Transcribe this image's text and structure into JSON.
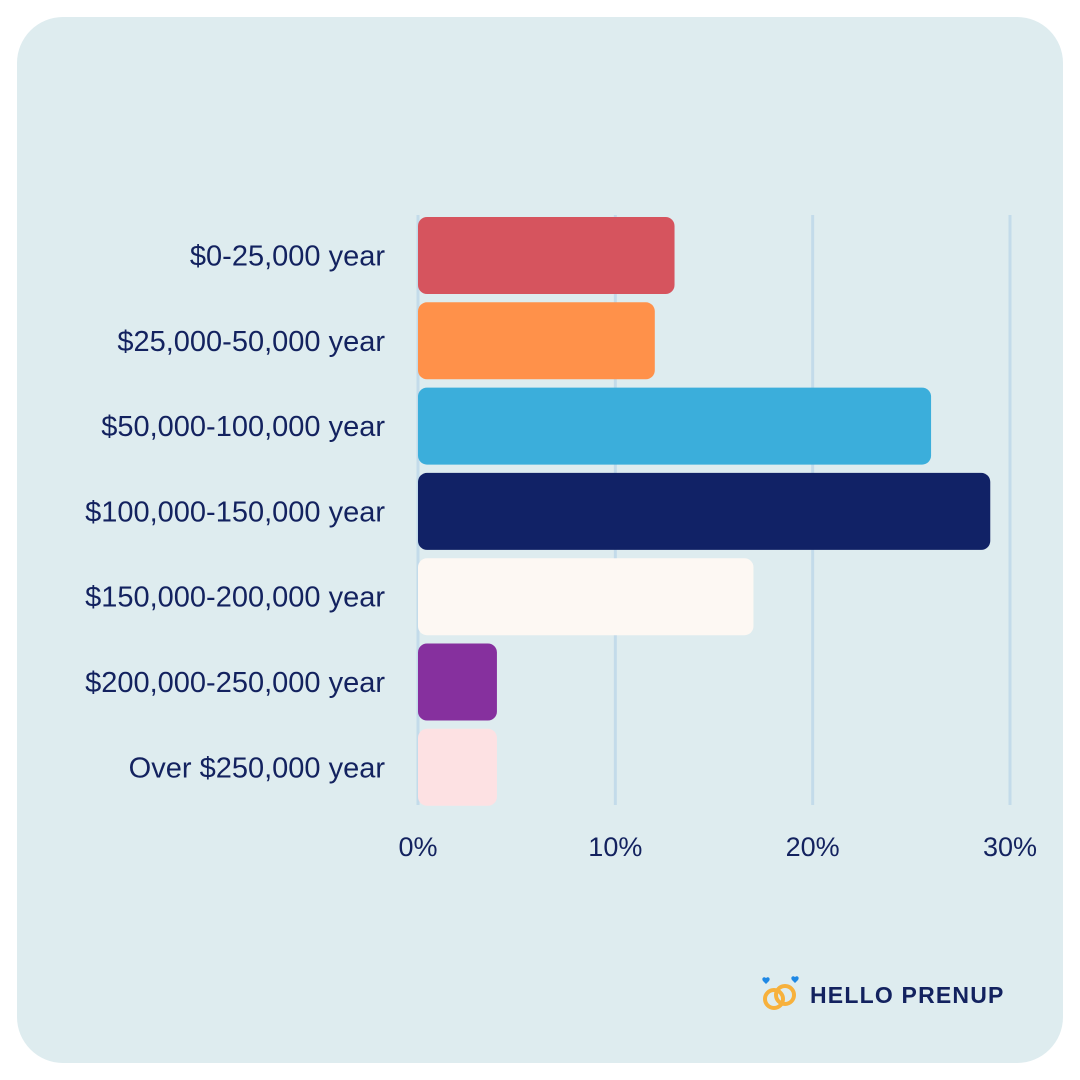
{
  "chart_data": {
    "type": "bar",
    "orientation": "horizontal",
    "categories": [
      "$0-25,000 year",
      "$25,000-50,000 year",
      "$50,000-100,000 year",
      "$100,000-150,000 year",
      "$150,000-200,000 year",
      "$200,000-250,000 year",
      "Over $250,000 year"
    ],
    "values": [
      13,
      12,
      26,
      29,
      17,
      4,
      4
    ],
    "colors": [
      "#d6545e",
      "#ff914a",
      "#3baedb",
      "#112266",
      "#fdf8f3",
      "#86309e",
      "#fde1e3"
    ],
    "xlim": [
      0,
      30
    ],
    "xticks": [
      0,
      10,
      20,
      30
    ],
    "xtick_labels": [
      "0%",
      "10%",
      "20%",
      "30%"
    ],
    "title": "",
    "xlabel": "",
    "ylabel": "",
    "grid": "vertical",
    "grid_color": "#c3dbea"
  },
  "brand": {
    "name": "HELLO PRENUP",
    "icon": "rings-icon",
    "text_color": "#13225f",
    "ring_color": "#f7b13c",
    "heart_color": "#1e88e5"
  },
  "theme": {
    "background": "#deecef",
    "text_color": "#13225f"
  }
}
